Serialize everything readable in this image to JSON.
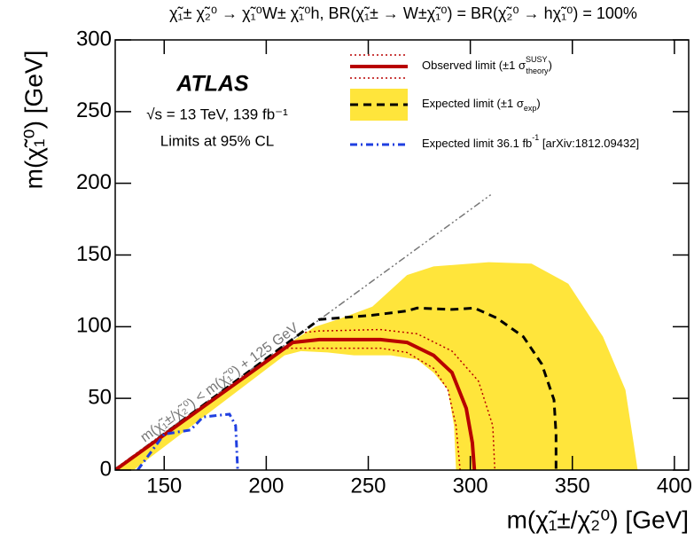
{
  "chart_data": {
    "type": "line",
    "title": "χ̃₁± χ̃₂⁰ → χ̃₁⁰W± χ̃₁⁰h,  BR(χ̃₁± → W±χ̃₁⁰) = BR(χ̃₂⁰ → hχ̃₁⁰) = 100%",
    "x_label": "m(χ̃₁±/χ̃₂⁰) [GeV]",
    "y_label": "m(χ̃₁⁰) [GeV]",
    "annotations": [
      "ATLAS",
      "√s = 13 TeV, 139 fb⁻¹",
      "Limits at 95% CL"
    ],
    "xlim": [
      126,
      407
    ],
    "ylim": [
      0,
      300
    ],
    "xticks": [
      150,
      200,
      250,
      300,
      350,
      400
    ],
    "yticks": [
      0,
      50,
      100,
      150,
      200,
      250,
      300
    ],
    "kinematic_line": {
      "label": "m(χ̃₁±/χ̃₂⁰) < m(χ̃₁⁰) + 125 GeV",
      "color": "#777777",
      "x": [
        125,
        310
      ],
      "values": [
        0,
        192
      ]
    },
    "series": [
      {
        "name": "Expected limit (±1 σ",
        "name_sub": "exp",
        "name_close": ")",
        "color": "#000000",
        "style": "dashed",
        "x": [
          126,
          226,
          252,
          269,
          274,
          291,
          302,
          313,
          326,
          335,
          341,
          342,
          342
        ],
        "values": [
          0,
          105,
          108,
          111,
          113,
          112,
          113,
          106,
          93,
          74,
          49,
          25,
          0
        ],
        "band": {
          "color": "#ffe53b",
          "x": [
            126,
            215,
            224,
            235,
            252,
            269,
            282,
            309,
            330,
            348,
            365,
            376,
            380,
            382,
            293,
            292,
            289,
            282,
            274,
            261,
            243,
            230,
            217,
            209,
            135
          ],
          "values": [
            0,
            92,
            100,
            105,
            114,
            136,
            142,
            145,
            144,
            130,
            93,
            56,
            19,
            0,
            0,
            31,
            56,
            68,
            77,
            80,
            80,
            82,
            83,
            80,
            0
          ]
        }
      },
      {
        "name": "Observed limit (±1 σ",
        "name_sup": "SUSY",
        "name_sub": "theory",
        "name_close": ")",
        "color": "#b80000",
        "style": "solid",
        "x": [
          126,
          213,
          226,
          256,
          269,
          282,
          291,
          298,
          301,
          302
        ],
        "values": [
          0,
          89,
          91,
          91,
          89,
          80,
          68,
          43,
          19,
          0
        ],
        "theory_up": {
          "x": [
            219,
            226,
            256,
            274,
            291,
            304,
            311,
            312
          ],
          "values": [
            96,
            97,
            98,
            95,
            83,
            62,
            31,
            0
          ]
        },
        "theory_down": {
          "x": [
            210,
            256,
            269,
            282,
            289,
            293,
            295
          ],
          "values": [
            85,
            85,
            82,
            71,
            56,
            31,
            0
          ]
        }
      },
      {
        "name": "Expected limit 36.1 fb",
        "name_sup": "-1",
        "name_close": " [arXiv:1812.09432]",
        "color": "#1f3fe0",
        "style": "dashdot",
        "x": [
          137,
          150,
          163,
          169,
          182,
          185,
          186
        ],
        "values": [
          0,
          25,
          28,
          37,
          39,
          31,
          0
        ]
      }
    ]
  }
}
